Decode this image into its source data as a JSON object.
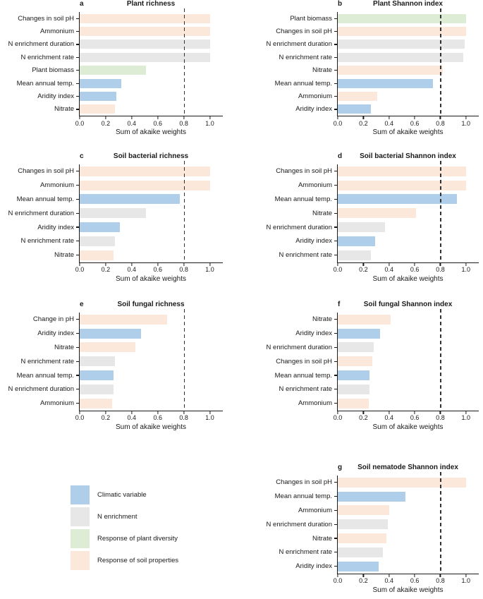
{
  "figure": {
    "xlabel": "Sum of akaike weights",
    "x_ticks": [
      "0.0",
      "0.2",
      "0.4",
      "0.6",
      "0.8",
      "1.0"
    ],
    "x_max": 1.1,
    "reference_line": 0.8
  },
  "colors": {
    "axis": "#1a1a1a",
    "reference_line": "#323232",
    "palette": {
      "climatic": "#aeceea",
      "n_enrichment": "#e7e7e7",
      "plant_diversity": "#ddecd5",
      "soil_properties": "#fbe8da"
    }
  },
  "legend": {
    "items": [
      {
        "key": "climatic",
        "label": "Climatic variable"
      },
      {
        "key": "n_enrichment",
        "label": "N enrichment"
      },
      {
        "key": "plant_diversity",
        "label": "Response of plant diversity"
      },
      {
        "key": "soil_properties",
        "label": "Response of soil properties"
      }
    ]
  },
  "chart_data": [
    {
      "type": "bar",
      "panel": "a",
      "title": "Plant richness",
      "orientation": "horizontal",
      "xlabel": "Sum of akaike weights",
      "xlim": [
        0,
        1.1
      ],
      "reference_line": 0.8,
      "categories": [
        "Changes in soil pH",
        "Ammonium",
        "N enrichment duration",
        "N enrichment rate",
        "Plant biomass",
        "Mean annual temp.",
        "Aridity index",
        "Nitrate"
      ],
      "values": [
        1.0,
        1.0,
        1.0,
        1.0,
        0.51,
        0.32,
        0.28,
        0.27
      ],
      "bar_types": [
        "soil_properties",
        "soil_properties",
        "n_enrichment",
        "n_enrichment",
        "plant_diversity",
        "climatic",
        "climatic",
        "soil_properties"
      ]
    },
    {
      "type": "bar",
      "panel": "b",
      "title": "Plant Shannon index",
      "orientation": "horizontal",
      "xlabel": "Sum of akaike weights",
      "xlim": [
        0,
        1.1
      ],
      "reference_line": 0.8,
      "categories": [
        "Plant biomass",
        "Changes in soil pH",
        "N enrichment duration",
        "N enrichment rate",
        "Nitrate",
        "Mean annual temp.",
        "Ammonium",
        "Aridity index"
      ],
      "values": [
        1.0,
        1.0,
        0.99,
        0.98,
        0.82,
        0.74,
        0.31,
        0.26
      ],
      "bar_types": [
        "plant_diversity",
        "soil_properties",
        "n_enrichment",
        "n_enrichment",
        "soil_properties",
        "climatic",
        "soil_properties",
        "climatic"
      ]
    },
    {
      "type": "bar",
      "panel": "c",
      "title": "Soil bacterial richness",
      "orientation": "horizontal",
      "xlabel": "Sum of akaike weights",
      "xlim": [
        0,
        1.1
      ],
      "reference_line": 0.8,
      "categories": [
        "Changes in soil pH",
        "Ammonium",
        "Mean annual temp.",
        "N enrichment duration",
        "Aridity index",
        "N enrichment rate",
        "Nitrate"
      ],
      "values": [
        1.0,
        1.0,
        0.77,
        0.51,
        0.31,
        0.27,
        0.26
      ],
      "bar_types": [
        "soil_properties",
        "soil_properties",
        "climatic",
        "n_enrichment",
        "climatic",
        "n_enrichment",
        "soil_properties"
      ]
    },
    {
      "type": "bar",
      "panel": "d",
      "title": "Soil bacterial Shannon index",
      "orientation": "horizontal",
      "xlabel": "Sum of akaike weights",
      "xlim": [
        0,
        1.1
      ],
      "reference_line": 0.8,
      "categories": [
        "Changes in soil pH",
        "Ammonium",
        "Mean annual temp.",
        "Nitrate",
        "N enrichment duration",
        "Aridity index",
        "N enrichment rate"
      ],
      "values": [
        1.0,
        1.0,
        0.93,
        0.61,
        0.37,
        0.29,
        0.26
      ],
      "bar_types": [
        "soil_properties",
        "soil_properties",
        "climatic",
        "soil_properties",
        "n_enrichment",
        "climatic",
        "n_enrichment"
      ]
    },
    {
      "type": "bar",
      "panel": "e",
      "title": "Soil fungal richness",
      "orientation": "horizontal",
      "xlabel": "Sum of akaike weights",
      "xlim": [
        0,
        1.1
      ],
      "reference_line": 0.8,
      "categories": [
        "Change in pH",
        "Aridity index",
        "Nitrate",
        "N enrichment rate",
        "Mean annual temp.",
        "N enrichment duration",
        "Ammonium"
      ],
      "values": [
        0.67,
        0.47,
        0.43,
        0.27,
        0.26,
        0.26,
        0.25
      ],
      "bar_types": [
        "soil_properties",
        "climatic",
        "soil_properties",
        "n_enrichment",
        "climatic",
        "n_enrichment",
        "soil_properties"
      ]
    },
    {
      "type": "bar",
      "panel": "f",
      "title": "Soil fungal Shannon index",
      "orientation": "horizontal",
      "xlabel": "Sum of akaike weights",
      "xlim": [
        0,
        1.1
      ],
      "reference_line": 0.8,
      "categories": [
        "Nitrate",
        "Aridity index",
        "N enrichment duration",
        "Changes in soil pH",
        "Mean annual temp.",
        "N enrichment rate",
        "Ammonium"
      ],
      "values": [
        0.41,
        0.33,
        0.28,
        0.27,
        0.25,
        0.25,
        0.24
      ],
      "bar_types": [
        "soil_properties",
        "climatic",
        "n_enrichment",
        "soil_properties",
        "climatic",
        "n_enrichment",
        "soil_properties"
      ]
    },
    {
      "type": "bar",
      "panel": "g",
      "title": "Soil nematode Shannon index",
      "orientation": "horizontal",
      "xlabel": "Sum of akaike weights",
      "xlim": [
        0,
        1.1
      ],
      "reference_line": 0.8,
      "categories": [
        "Changes in soil pH",
        "Mean annual temp.",
        "Ammonium",
        "N enrichment duration",
        "Nitrate",
        "N enrichment rate",
        "Aridity index"
      ],
      "values": [
        1.0,
        0.53,
        0.4,
        0.39,
        0.38,
        0.35,
        0.32
      ],
      "bar_types": [
        "soil_properties",
        "climatic",
        "soil_properties",
        "n_enrichment",
        "soil_properties",
        "n_enrichment",
        "climatic"
      ]
    }
  ]
}
